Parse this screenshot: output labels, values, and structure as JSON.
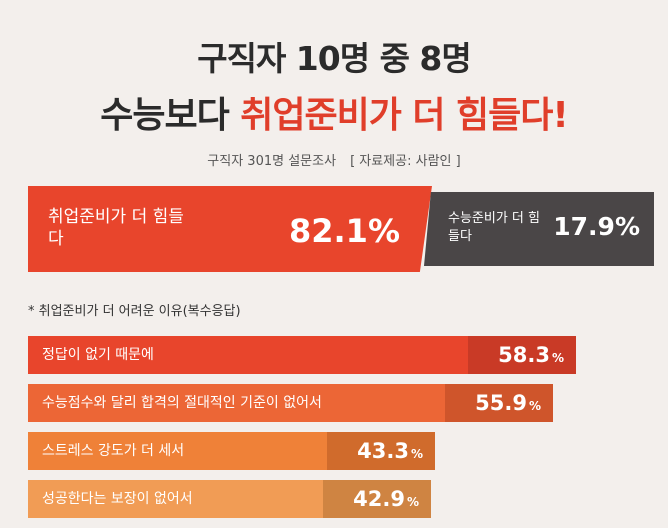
{
  "title": {
    "line1": "구직자 10명 중 8명",
    "line2_prefix": "수능보다 ",
    "line2_accent": "취업준비가 더 힘들다!"
  },
  "subtitle": {
    "survey": "구직자 301명 설문조사",
    "source": "[ 자료제공: 사람인 ]"
  },
  "chart_data": [
    {
      "type": "bar",
      "orientation": "horizontal-split",
      "categories": [
        "취업준비가 더 힘들다",
        "수능준비가 더 힘들다"
      ],
      "values": [
        82.1,
        17.9
      ],
      "unit": "%",
      "colors": [
        "#e8452c",
        "#4a4647"
      ],
      "value_labels": [
        "82.1%",
        "17.9%"
      ]
    },
    {
      "type": "bar",
      "orientation": "horizontal",
      "title": "* 취업준비가 더 어려운 이유(복수응답)",
      "categories": [
        "정답이 없기 때문에",
        "수능점수와 달리 합격의 절대적인 기준이 없어서",
        "스트레스 강도가 더 세서",
        "성공한다는 보장이 없어서"
      ],
      "values": [
        58.3,
        55.9,
        43.3,
        42.9
      ],
      "value_labels": [
        "58.3",
        "55.9",
        "43.3",
        "42.9"
      ],
      "unit": "%",
      "colors": [
        {
          "bar": "#e8452c",
          "tab": "#c93a26"
        },
        {
          "bar": "#ec6636",
          "tab": "#cf552b"
        },
        {
          "bar": "#ef8138",
          "tab": "#d06b2c"
        },
        {
          "bar": "#f19c55",
          "tab": "#cf8442"
        }
      ]
    }
  ]
}
